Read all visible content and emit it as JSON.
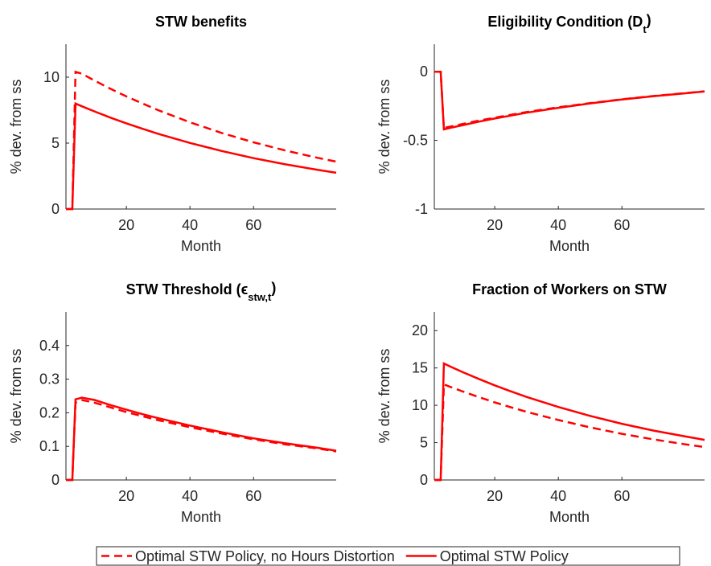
{
  "chart_data": [
    {
      "type": "line",
      "title": {
        "text": "STW benefits"
      },
      "xlabel": "Month",
      "ylabel": "% dev. from ss",
      "x": [
        1,
        3,
        4,
        6,
        10,
        15,
        20,
        25,
        30,
        40,
        50,
        60,
        70,
        80,
        86
      ],
      "xlim": [
        1,
        86
      ],
      "xticks": [
        20,
        40,
        60
      ],
      "ylim": [
        0,
        12.5
      ],
      "yticks": [
        0,
        5,
        10
      ],
      "series": [
        {
          "name": "Optimal STW Policy, no Hours Distortion",
          "color": "#ff0000",
          "style": "dashed",
          "values": [
            0,
            0,
            10.4,
            10.26,
            9.74,
            9.12,
            8.54,
            8.01,
            7.5,
            6.58,
            5.77,
            5.06,
            4.44,
            3.89,
            3.6
          ]
        },
        {
          "name": "Optimal STW Policy",
          "color": "#ff0000",
          "style": "solid",
          "values": [
            0,
            0,
            8,
            7.79,
            7.4,
            6.93,
            6.5,
            6.09,
            5.71,
            5.01,
            4.4,
            3.86,
            3.39,
            2.98,
            2.75
          ]
        }
      ]
    },
    {
      "type": "line",
      "title": {
        "text": "Eligibility Condition (D",
        "subscript": "t",
        "suffix": ")"
      },
      "xlabel": "Month",
      "ylabel": "% dev. from ss",
      "x": [
        1,
        3,
        4,
        6,
        10,
        15,
        20,
        25,
        30,
        40,
        50,
        60,
        70,
        80,
        86
      ],
      "xlim": [
        1,
        86
      ],
      "xticks": [
        20,
        40,
        60
      ],
      "ylim": [
        -1,
        0.2
      ],
      "yticks": [
        -1,
        -0.5,
        0
      ],
      "series": [
        {
          "color": "#ff0000",
          "style": "dashed",
          "values": [
            0,
            0,
            -0.41,
            -0.4,
            -0.38,
            -0.356,
            -0.335,
            -0.314,
            -0.294,
            -0.259,
            -0.229,
            -0.201,
            -0.177,
            -0.156,
            -0.143
          ]
        },
        {
          "color": "#ff0000",
          "style": "solid",
          "values": [
            0,
            0,
            -0.42,
            -0.409,
            -0.389,
            -0.364,
            -0.341,
            -0.32,
            -0.299,
            -0.263,
            -0.231,
            -0.203,
            -0.178,
            -0.157,
            -0.144
          ]
        }
      ]
    },
    {
      "type": "line",
      "title": {
        "text": "STW Threshold (ϵ",
        "subscript": "stw,t",
        "suffix": ")"
      },
      "xlabel": "Month",
      "ylabel": "% dev. from ss",
      "x": [
        1,
        3,
        4,
        6,
        10,
        15,
        20,
        25,
        30,
        40,
        50,
        60,
        70,
        80,
        86
      ],
      "xlim": [
        1,
        86
      ],
      "xticks": [
        20,
        40,
        60
      ],
      "ylim": [
        0,
        0.5
      ],
      "yticks": [
        0,
        0.1,
        0.2,
        0.3,
        0.4
      ],
      "series": [
        {
          "color": "#ff0000",
          "style": "dashed",
          "values": [
            0,
            0,
            0.23,
            0.238,
            0.23,
            0.216,
            0.202,
            0.19,
            0.178,
            0.157,
            0.138,
            0.121,
            0.106,
            0.094,
            0.085
          ]
        },
        {
          "color": "#ff0000",
          "style": "solid",
          "values": [
            0,
            0,
            0.24,
            0.245,
            0.238,
            0.223,
            0.209,
            0.196,
            0.184,
            0.162,
            0.142,
            0.124,
            0.109,
            0.096,
            0.087
          ]
        }
      ]
    },
    {
      "type": "line",
      "title": {
        "text": "Fraction of Workers on STW"
      },
      "xlabel": "Month",
      "ylabel": "% dev. from ss",
      "x": [
        1,
        3,
        4,
        6,
        10,
        15,
        20,
        25,
        30,
        40,
        50,
        60,
        70,
        80,
        86
      ],
      "xlim": [
        1,
        86
      ],
      "xticks": [
        20,
        40,
        60
      ],
      "ylim": [
        0,
        22.5
      ],
      "yticks": [
        0,
        5,
        10,
        15,
        20
      ],
      "series": [
        {
          "color": "#ff0000",
          "style": "dashed",
          "values": [
            0,
            0,
            12.8,
            12.47,
            11.84,
            11.1,
            10.39,
            9.74,
            9.13,
            8.03,
            7.04,
            6.18,
            5.43,
            4.77,
            4.4
          ]
        },
        {
          "color": "#ff0000",
          "style": "solid",
          "values": [
            0,
            0,
            15.6,
            15.19,
            14.43,
            13.53,
            12.67,
            11.87,
            11.12,
            9.78,
            8.58,
            7.53,
            6.61,
            5.82,
            5.37
          ]
        }
      ]
    }
  ]
}
